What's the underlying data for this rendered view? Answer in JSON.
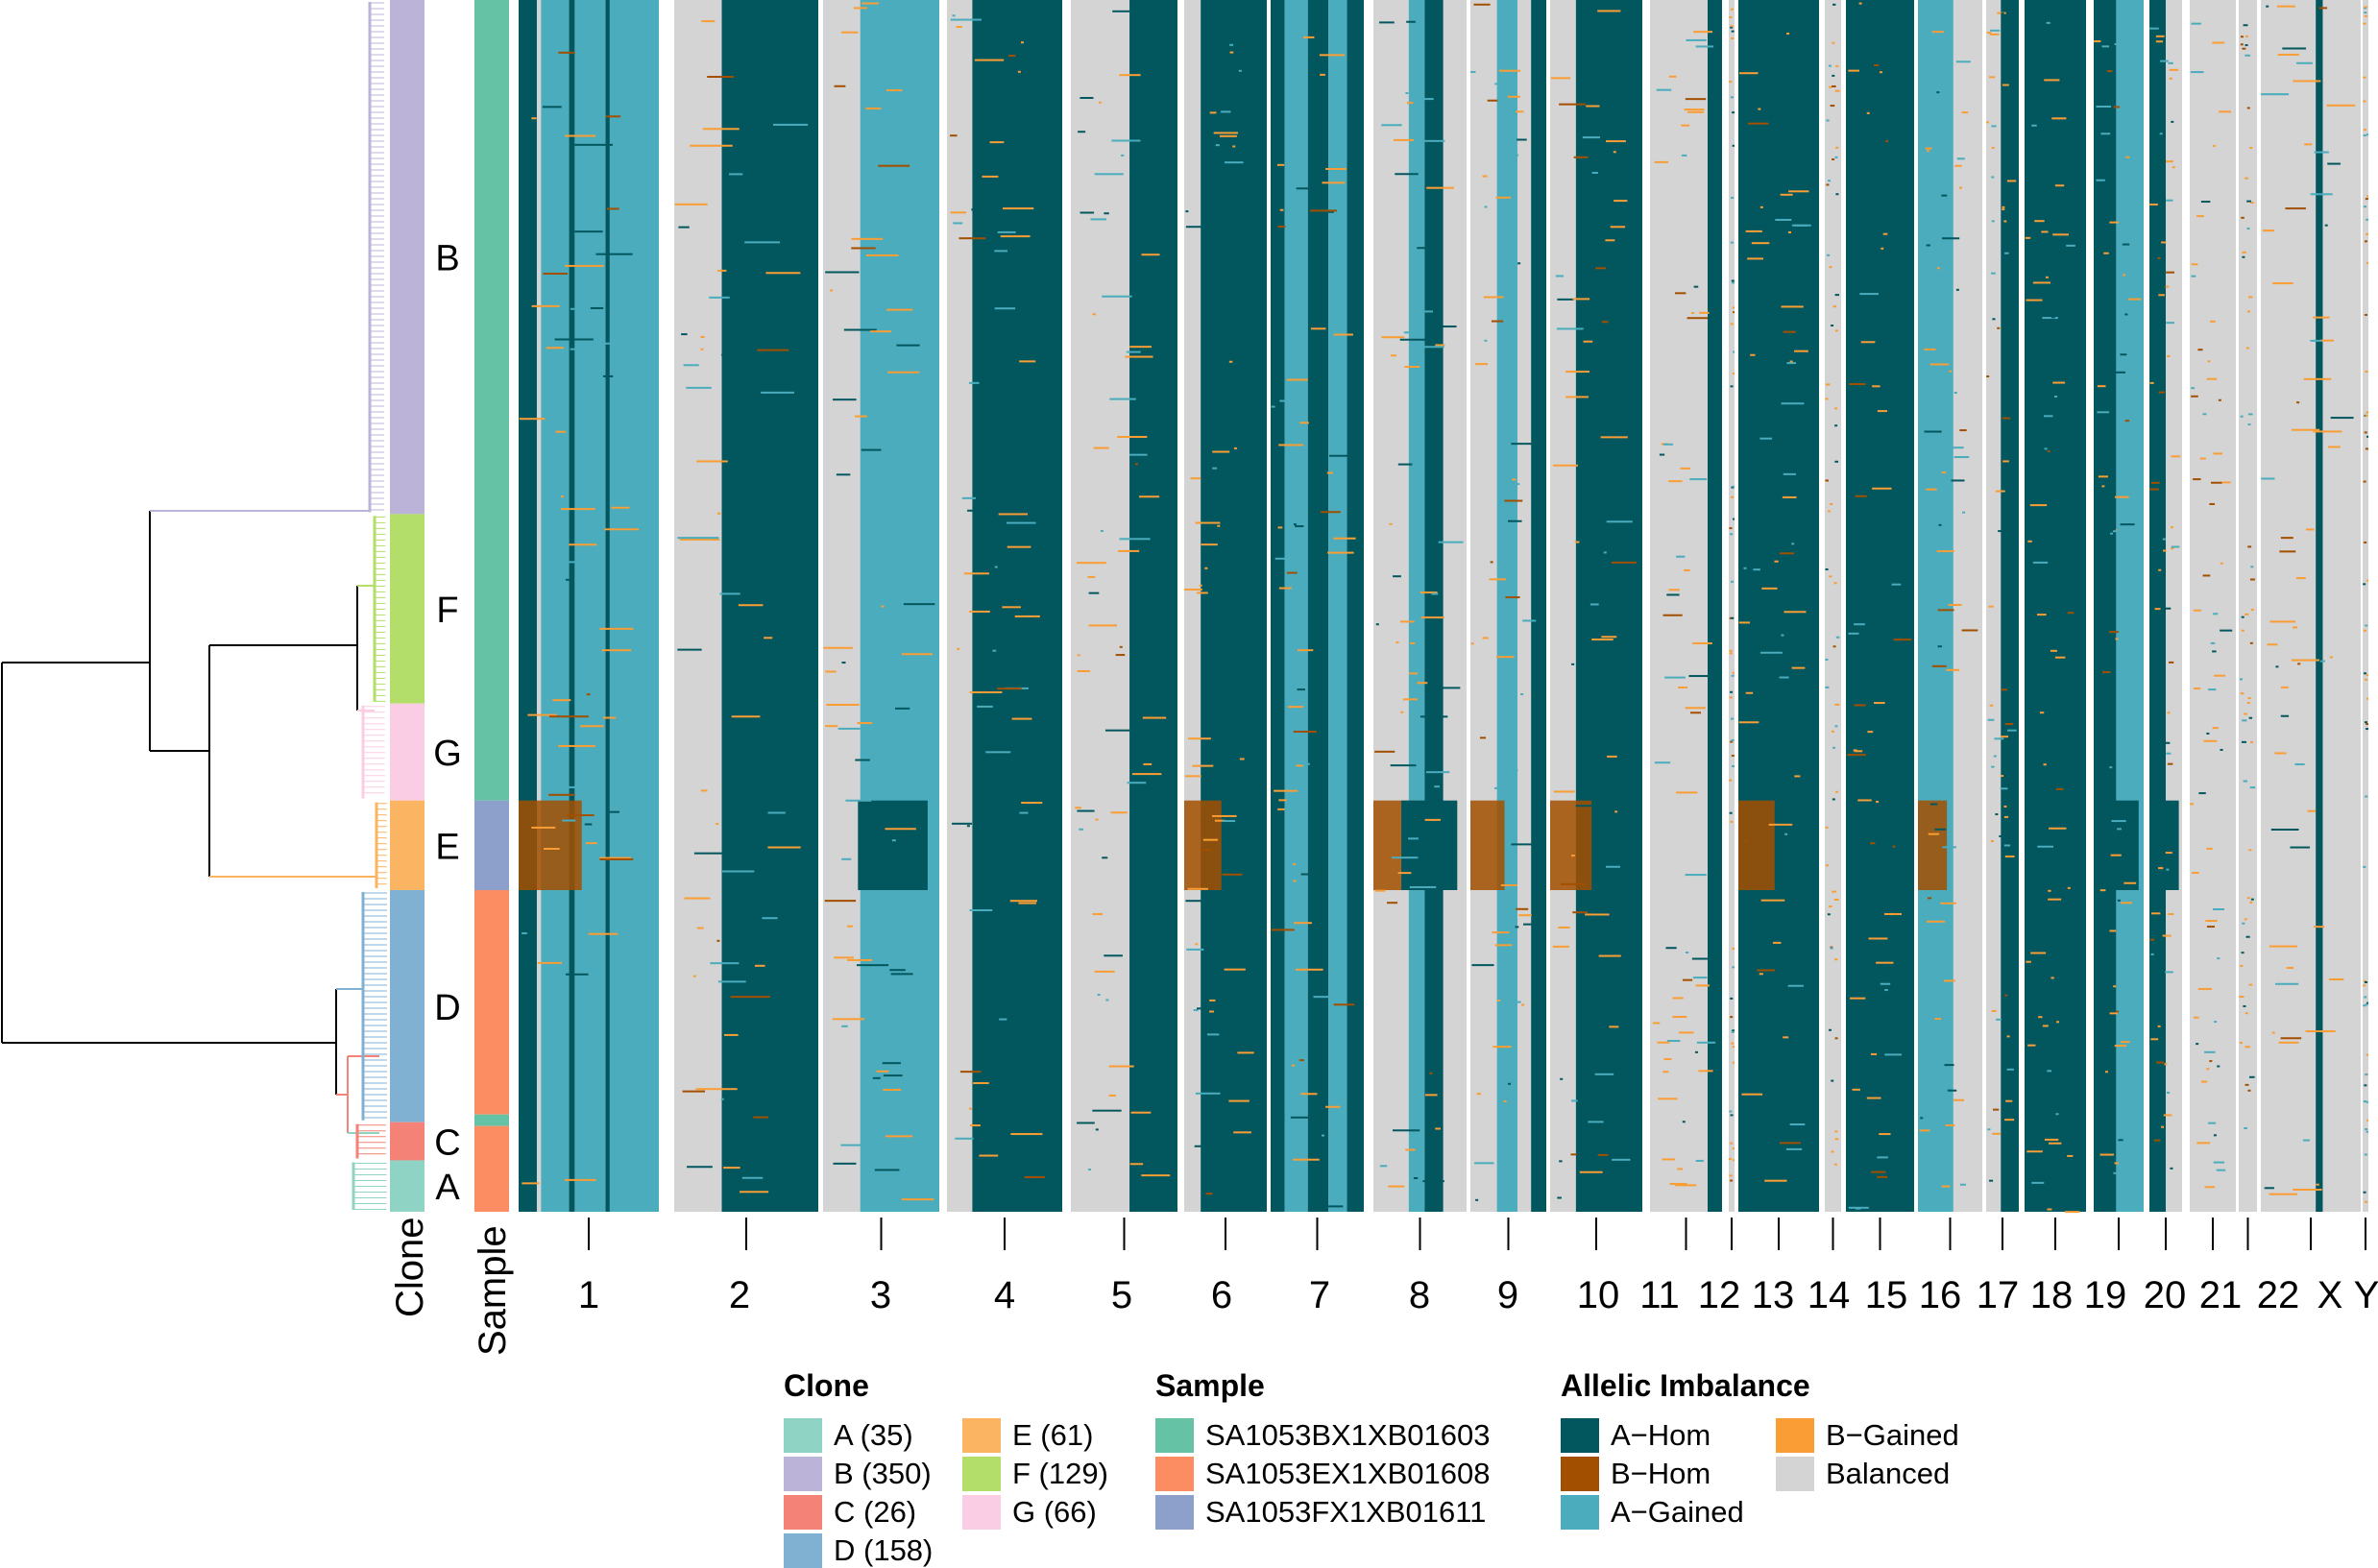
{
  "chart_data": {
    "type": "heatmap",
    "title": "",
    "xlabel": "",
    "ylabel": "",
    "row_annotations": [
      {
        "name": "Clone",
        "label": "Clone"
      },
      {
        "name": "Sample",
        "label": "Sample"
      }
    ],
    "chromosomes": [
      {
        "name": "1",
        "label": "1"
      },
      {
        "name": "2",
        "label": "2"
      },
      {
        "name": "3",
        "label": "3"
      },
      {
        "name": "4",
        "label": "4"
      },
      {
        "name": "5",
        "label": "5"
      },
      {
        "name": "6",
        "label": "6"
      },
      {
        "name": "7",
        "label": "7"
      },
      {
        "name": "8",
        "label": "8"
      },
      {
        "name": "9",
        "label": "9"
      },
      {
        "name": "10",
        "label": "10"
      },
      {
        "name": "11",
        "label": "11"
      },
      {
        "name": "12",
        "label": "12"
      },
      {
        "name": "13",
        "label": "13"
      },
      {
        "name": "14",
        "label": "14"
      },
      {
        "name": "15",
        "label": "15"
      },
      {
        "name": "16",
        "label": "16"
      },
      {
        "name": "17",
        "label": "17"
      },
      {
        "name": "18",
        "label": "18"
      },
      {
        "name": "19",
        "label": "19"
      },
      {
        "name": "20",
        "label": "20"
      },
      {
        "name": "21",
        "label": "21"
      },
      {
        "name": "22",
        "label": "22"
      },
      {
        "name": "X",
        "label": "X"
      },
      {
        "name": "Y",
        "label": "Y"
      }
    ],
    "clones": [
      {
        "label": "A",
        "cells": 35,
        "color": "#8fd3c4"
      },
      {
        "label": "B",
        "cells": 350,
        "color": "#bcb4d8"
      },
      {
        "label": "C",
        "cells": 26,
        "color": "#f48277"
      },
      {
        "label": "D",
        "cells": 158,
        "color": "#80b1d3"
      },
      {
        "label": "E",
        "cells": 61,
        "color": "#fbb461"
      },
      {
        "label": "F",
        "cells": 129,
        "color": "#b3de69"
      },
      {
        "label": "G",
        "cells": 66,
        "color": "#fbcde4"
      }
    ],
    "clone_order_top_to_bottom": [
      "B",
      "F",
      "G",
      "E",
      "D",
      "C",
      "A"
    ],
    "samples": [
      {
        "label": "SA1053BX1XB01603",
        "color": "#66c2a5"
      },
      {
        "label": "SA1053EX1XB01608",
        "color": "#fc8d62"
      },
      {
        "label": "SA1053FX1XB01611",
        "color": "#8da0cb"
      }
    ],
    "states": [
      {
        "label": "A−Hom",
        "color": "#02575f"
      },
      {
        "label": "B−Hom",
        "color": "#a34f00"
      },
      {
        "label": "A−Gained",
        "color": "#4aacbd"
      },
      {
        "label": "B−Gained",
        "color": "#f99d34"
      },
      {
        "label": "Balanced",
        "color": "#d4d4d4"
      }
    ]
  },
  "legend": {
    "clone_title": "Clone",
    "clone_items": [
      {
        "label": "A (35)",
        "color": "#8fd3c4"
      },
      {
        "label": "B (350)",
        "color": "#bcb4d8"
      },
      {
        "label": "C (26)",
        "color": "#f48277"
      },
      {
        "label": "D (158)",
        "color": "#80b1d3"
      },
      {
        "label": "E (61)",
        "color": "#fbb461"
      },
      {
        "label": "F (129)",
        "color": "#b3de69"
      },
      {
        "label": "G (66)",
        "color": "#fbcde4"
      }
    ],
    "sample_title": "Sample",
    "sample_items": [
      {
        "label": "SA1053BX1XB01603",
        "color": "#66c2a5"
      },
      {
        "label": "SA1053EX1XB01608",
        "color": "#fc8d62"
      },
      {
        "label": "SA1053FX1XB01611",
        "color": "#8da0cb"
      }
    ],
    "state_title": "Allelic Imbalance",
    "state_items": [
      {
        "label": "A−Hom",
        "color": "#02575f"
      },
      {
        "label": "B−Hom",
        "color": "#a34f00"
      },
      {
        "label": "A−Gained",
        "color": "#4aacbd"
      },
      {
        "label": "B−Gained",
        "color": "#f99d34"
      },
      {
        "label": "Balanced",
        "color": "#d4d4d4"
      }
    ]
  }
}
